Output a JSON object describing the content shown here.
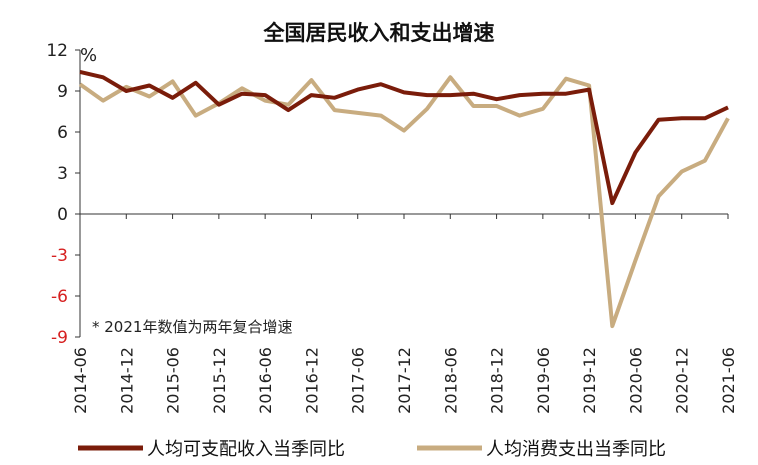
{
  "colors": {
    "series_1": "#7a1c0a",
    "series_2": "#c8ac80",
    "negative_tick": "#d62020"
  },
  "chart_data": {
    "type": "line",
    "title": "全国居民收入和支出增速",
    "y_unit": "%",
    "note": "* 2021年数值为两年复合增速",
    "ylim": [
      -9,
      12
    ],
    "yticks": [
      "12",
      "9",
      "6",
      "3",
      "0",
      "-3",
      "-6",
      "-9"
    ],
    "ytick_values": [
      12,
      9,
      6,
      3,
      0,
      -3,
      -6,
      -9
    ],
    "xticks": [
      "2014-06",
      "2014-12",
      "2015-06",
      "2015-12",
      "2016-06",
      "2016-12",
      "2017-06",
      "2017-12",
      "2018-06",
      "2018-12",
      "2019-06",
      "2019-12",
      "2020-06",
      "2020-12",
      "2021-06"
    ],
    "x": [
      "2014-06",
      "2014-09",
      "2014-12",
      "2015-03",
      "2015-06",
      "2015-09",
      "2015-12",
      "2016-03",
      "2016-06",
      "2016-09",
      "2016-12",
      "2017-03",
      "2017-06",
      "2017-09",
      "2017-12",
      "2018-03",
      "2018-06",
      "2018-09",
      "2018-12",
      "2019-03",
      "2019-06",
      "2019-09",
      "2019-12",
      "2020-03",
      "2020-06",
      "2020-09",
      "2020-12",
      "2021-03",
      "2021-06"
    ],
    "series": [
      {
        "name": "人均可支配收入当季同比",
        "values": [
          10.4,
          10.0,
          9.0,
          9.4,
          8.5,
          9.6,
          8.0,
          8.8,
          8.7,
          7.6,
          8.7,
          8.5,
          9.1,
          9.5,
          8.9,
          8.7,
          8.7,
          8.8,
          8.4,
          8.7,
          8.8,
          8.8,
          9.1,
          0.8,
          4.5,
          6.9,
          7.0,
          7.0,
          7.8
        ]
      },
      {
        "name": "人均消费支出当季同比",
        "values": [
          9.5,
          8.3,
          9.3,
          8.6,
          9.7,
          7.2,
          8.1,
          9.2,
          8.3,
          8.0,
          9.8,
          7.6,
          7.4,
          7.2,
          6.1,
          7.7,
          10.0,
          7.9,
          7.9,
          7.2,
          7.7,
          9.9,
          9.4,
          -8.2,
          -3.4,
          1.3,
          3.1,
          3.9,
          7.0
        ]
      }
    ]
  }
}
